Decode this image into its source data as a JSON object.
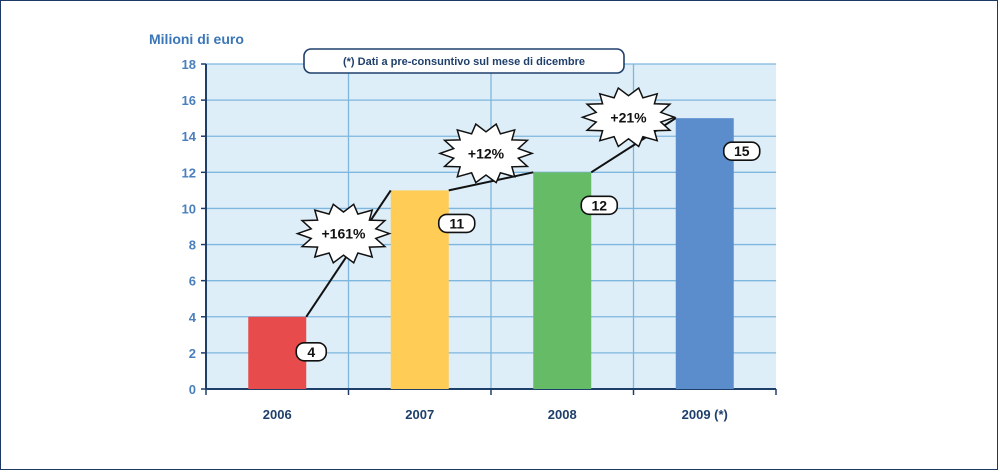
{
  "chart_data": {
    "type": "bar",
    "ylabel": "Milioni di euro",
    "annotation": "(*) Dati a pre-consuntivo sul mese di dicembre",
    "categories": [
      "2006",
      "2007",
      "2008",
      "2009 (*)"
    ],
    "values": [
      4,
      11,
      12,
      15
    ],
    "value_labels": [
      "4",
      "11",
      "12",
      "15"
    ],
    "bar_colors": [
      "#e84b4b",
      "#ffcc55",
      "#66bb66",
      "#5b8dcc"
    ],
    "growth_labels": [
      "+161%",
      "+12%",
      "+21%"
    ],
    "ylim": [
      0,
      18
    ],
    "yticks": [
      0,
      2,
      4,
      6,
      8,
      10,
      12,
      14,
      16,
      18
    ],
    "grid": true,
    "plot_background": "#ddeef8",
    "gridline_color": "#7fb6dd"
  }
}
